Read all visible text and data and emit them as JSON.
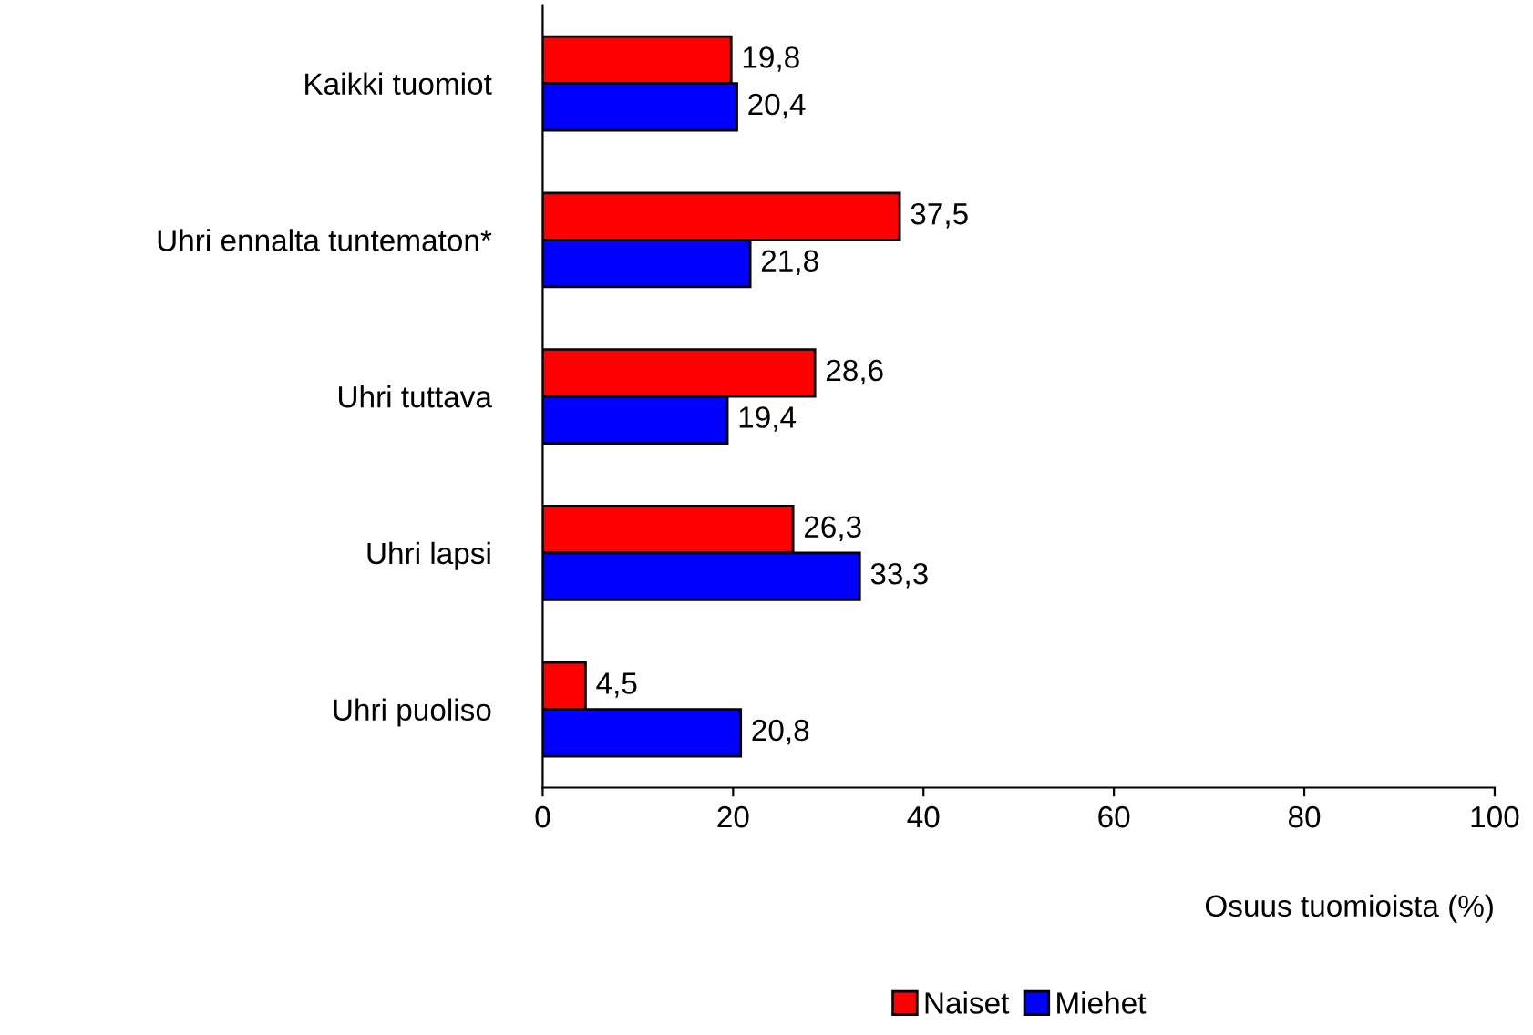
{
  "chart_data": {
    "type": "bar",
    "orientation": "horizontal",
    "xlabel": "Osuus tuomioista (%)",
    "categories": [
      "Kaikki tuomiot",
      "Uhri ennalta tuntematon*",
      "Uhri tuttava",
      "Uhri lapsi",
      "Uhri puoliso"
    ],
    "series": [
      {
        "name": "Naiset",
        "color": "#ff0000",
        "values": [
          19.8,
          37.5,
          28.6,
          26.3,
          4.5
        ],
        "value_labels": [
          "19,8",
          "37,5",
          "28,6",
          "26,3",
          "4,5"
        ]
      },
      {
        "name": "Miehet",
        "color": "#0000ff",
        "values": [
          20.4,
          21.8,
          19.4,
          33.3,
          20.8
        ],
        "value_labels": [
          "20,4",
          "21,8",
          "19,4",
          "33,3",
          "20,8"
        ]
      }
    ],
    "xlim": [
      0,
      100
    ],
    "xticks": [
      0,
      20,
      40,
      60,
      80,
      100
    ],
    "grid": false,
    "legend": "bottom"
  }
}
